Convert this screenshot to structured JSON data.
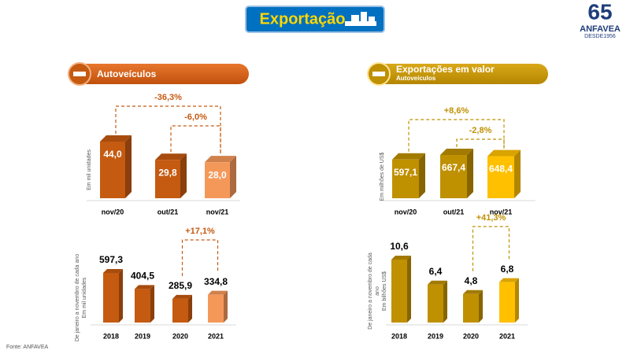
{
  "header": {
    "title": "Exportação"
  },
  "logo": {
    "number": "65",
    "name": "ANFAVEA",
    "since": "DESDE1956"
  },
  "panels": [
    {
      "title": "Autoveículos"
    },
    {
      "title": "Exportações em valor",
      "subtitle": "Autoveículos"
    }
  ],
  "source": "Fonte: ANFAVEA",
  "chart_data": [
    {
      "type": "bar",
      "ylabel": [
        "Em mil unidades"
      ],
      "categories": [
        "nov/20",
        "out/21",
        "nov/21"
      ],
      "values": [
        44.0,
        29.8,
        28.0
      ],
      "value_labels": [
        "44,0",
        "29,8",
        "28,0"
      ],
      "colors": [
        "#c55a11",
        "#c55a11",
        "#f4985a"
      ],
      "label_position": "inside",
      "annotation_color": "#c55a11",
      "annotations": [
        {
          "label": "-36,3%",
          "between": [
            "nov/20",
            "nov/21"
          ]
        },
        {
          "label": "-6,0%",
          "between": [
            "out/21",
            "nov/21"
          ]
        }
      ]
    },
    {
      "type": "bar",
      "ylabel": [
        "De janeiro a novembro de cada ano",
        "Em mil unidades"
      ],
      "categories": [
        "2018",
        "2019",
        "2020",
        "2021"
      ],
      "values": [
        597.3,
        404.5,
        285.9,
        334.8
      ],
      "value_labels": [
        "597,3",
        "404,5",
        "285,9",
        "334,8"
      ],
      "colors": [
        "#c55a11",
        "#c55a11",
        "#c55a11",
        "#f4985a"
      ],
      "label_position": "above",
      "annotation_color": "#c55a11",
      "annotations": [
        {
          "label": "+17,1%",
          "between": [
            "2020",
            "2021"
          ]
        }
      ]
    },
    {
      "type": "bar",
      "ylabel": [
        "Em milhões de US$"
      ],
      "categories": [
        "nov/20",
        "out/21",
        "nov/21"
      ],
      "values": [
        597.1,
        667.4,
        648.4
      ],
      "value_labels": [
        "597,1",
        "667,4",
        "648,4"
      ],
      "colors": [
        "#bf9000",
        "#bf9000",
        "#ffc000"
      ],
      "label_position": "inside",
      "annotation_color": "#bf9000",
      "annotations": [
        {
          "label": "+8,6%",
          "between": [
            "nov/20",
            "nov/21"
          ]
        },
        {
          "label": "-2,8%",
          "between": [
            "out/21",
            "nov/21"
          ]
        }
      ]
    },
    {
      "type": "bar",
      "ylabel": [
        "De janeiro a novembro de cada",
        "ano",
        "Em bilhões US$"
      ],
      "categories": [
        "2018",
        "2019",
        "2020",
        "2021"
      ],
      "values": [
        10.6,
        6.4,
        4.8,
        6.8
      ],
      "value_labels": [
        "10,6",
        "6,4",
        "4,8",
        "6,8"
      ],
      "colors": [
        "#bf9000",
        "#bf9000",
        "#bf9000",
        "#ffc000"
      ],
      "label_position": "above",
      "annotation_color": "#bf9000",
      "annotations": [
        {
          "label": "+41,3%",
          "between": [
            "2020",
            "2021"
          ]
        }
      ]
    }
  ]
}
